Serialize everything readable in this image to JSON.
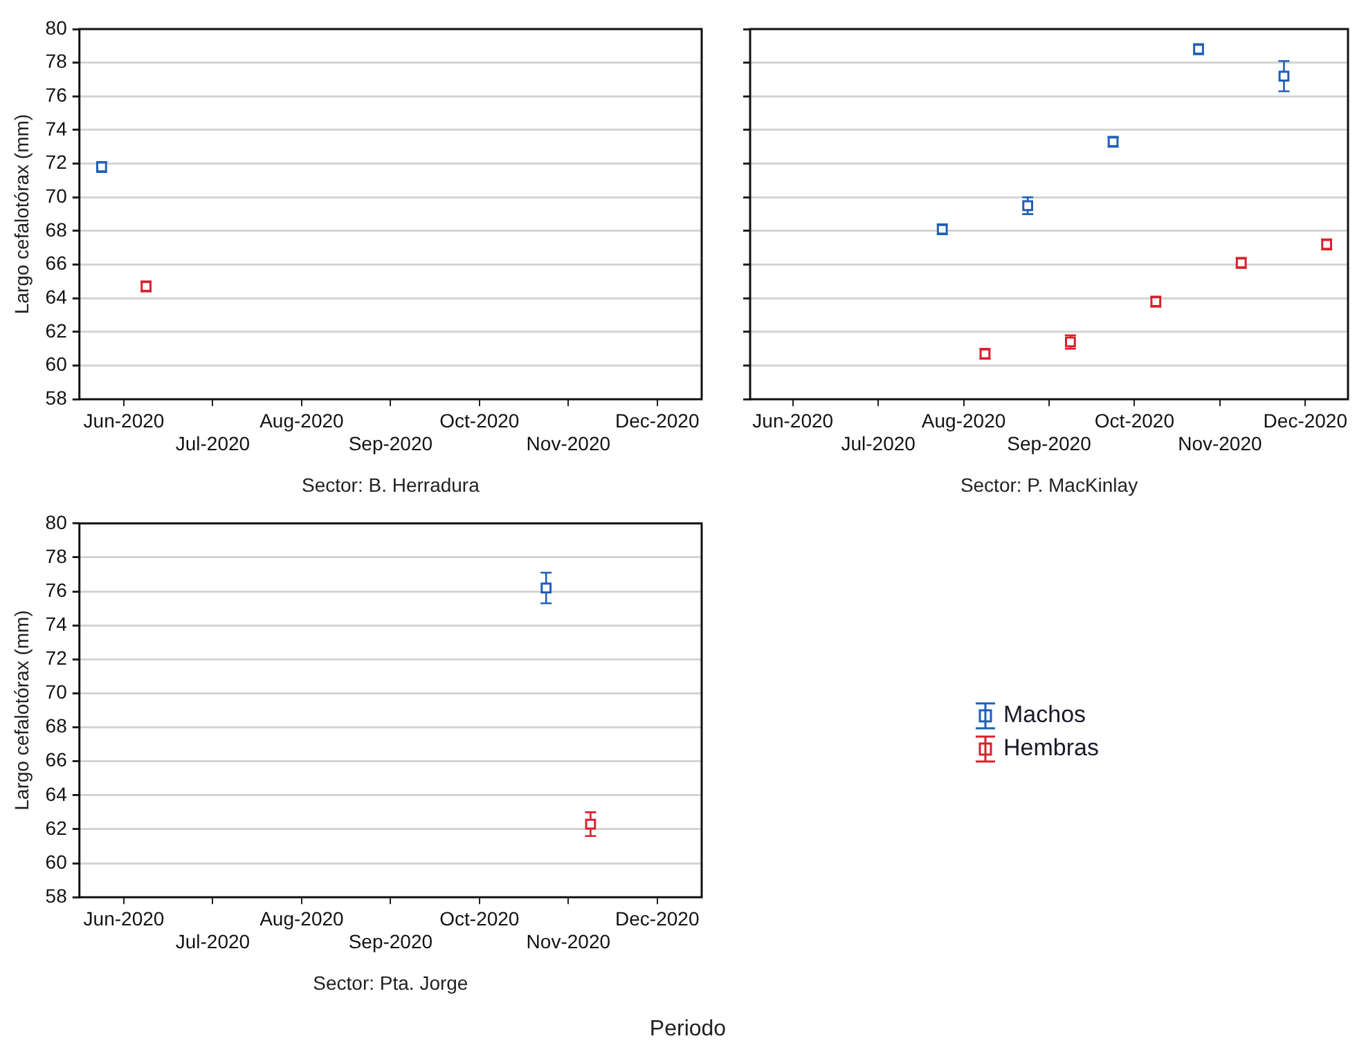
{
  "chart_data": [
    {
      "type": "scatter",
      "xlabel": "Sector: B. Herradura",
      "ylabel": "Largo cefalotórax (mm)",
      "categories": [
        "Jun-2020",
        "Jul-2020",
        "Aug-2020",
        "Sep-2020",
        "Oct-2020",
        "Nov-2020",
        "Dec-2020"
      ],
      "series": [
        {
          "color": "#1f5fb4",
          "values": [
            71.8,
            null,
            null,
            null,
            null,
            null,
            null
          ],
          "errors": [
            0.3,
            null,
            null,
            null,
            null,
            null,
            null
          ]
        },
        {
          "color": "#d9202b",
          "values": [
            64.7,
            null,
            null,
            null,
            null,
            null,
            null
          ],
          "errors": [
            0.3,
            null,
            null,
            null,
            null,
            null,
            null
          ]
        }
      ],
      "ylim": [
        58,
        80
      ],
      "yticks": [
        58,
        60,
        62,
        64,
        66,
        68,
        70,
        72,
        74,
        76,
        78,
        80
      ],
      "grid": "y",
      "marker": "square"
    },
    {
      "type": "scatter",
      "xlabel": "Sector: P. MacKinlay",
      "categories": [
        "Jun-2020",
        "Jul-2020",
        "Aug-2020",
        "Sep-2020",
        "Oct-2020",
        "Nov-2020",
        "Dec-2020"
      ],
      "series": [
        {
          "color": "#1f5fb4",
          "values": [
            null,
            null,
            68.1,
            69.5,
            73.3,
            78.8,
            77.2
          ],
          "errors": [
            null,
            null,
            0.3,
            0.5,
            0.3,
            0.3,
            0.9
          ]
        },
        {
          "color": "#d9202b",
          "values": [
            null,
            null,
            60.7,
            61.4,
            63.8,
            66.1,
            67.2
          ],
          "errors": [
            null,
            null,
            0.3,
            0.4,
            0.3,
            0.3,
            0.3
          ]
        }
      ],
      "ylim": [
        58,
        80
      ],
      "yticks": [
        58,
        60,
        62,
        64,
        66,
        68,
        70,
        72,
        74,
        76,
        78,
        80
      ],
      "grid": "y",
      "marker": "square",
      "tick_labels": "x"
    },
    {
      "type": "scatter",
      "xlabel": "Sector: Pta. Jorge",
      "ylabel": "Largo cefalotórax (mm)",
      "categories": [
        "Jun-2020",
        "Jul-2020",
        "Aug-2020",
        "Sep-2020",
        "Oct-2020",
        "Nov-2020",
        "Dec-2020"
      ],
      "series": [
        {
          "name": "Machos",
          "color": "#1f5fb4",
          "values": [
            null,
            null,
            null,
            null,
            null,
            76.2,
            null
          ],
          "errors": [
            null,
            null,
            null,
            null,
            null,
            0.9,
            null
          ]
        },
        {
          "name": "Hembras",
          "color": "#d9202b",
          "values": [
            null,
            null,
            null,
            null,
            null,
            62.3,
            null
          ],
          "errors": [
            null,
            null,
            null,
            null,
            null,
            0.7,
            null
          ]
        }
      ],
      "ylim": [
        58,
        80
      ],
      "yticks": [
        58,
        60,
        62,
        64,
        66,
        68,
        70,
        72,
        74,
        76,
        78,
        80
      ],
      "grid": "y",
      "marker": "square",
      "legend": "right",
      "annotations": [
        "Periodo"
      ]
    }
  ]
}
